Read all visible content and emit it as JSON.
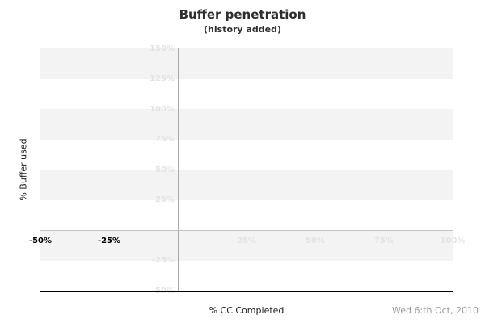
{
  "chart_data": {
    "type": "line",
    "title": "Buffer penetration",
    "subtitle": "(history added)",
    "xlabel": "% CC Completed",
    "ylabel": "% Buffer used",
    "footer_date": "Wed 6:th Oct, 2010",
    "xlim": [
      -50,
      100
    ],
    "ylim": [
      -50,
      150
    ],
    "x_ticks": [
      {
        "value": -50,
        "label": "-50%",
        "emphasis": true
      },
      {
        "value": -25,
        "label": "-25%",
        "emphasis": true
      },
      {
        "value": 25,
        "label": "25%",
        "emphasis": false
      },
      {
        "value": 50,
        "label": "50%",
        "emphasis": false
      },
      {
        "value": 75,
        "label": "75%",
        "emphasis": false
      },
      {
        "value": 100,
        "label": "100%",
        "emphasis": false
      }
    ],
    "y_ticks": [
      {
        "value": 150,
        "label": "150%"
      },
      {
        "value": 125,
        "label": "125%"
      },
      {
        "value": 100,
        "label": "100%"
      },
      {
        "value": 75,
        "label": "75%"
      },
      {
        "value": 50,
        "label": "50%"
      },
      {
        "value": 25,
        "label": "25%"
      },
      {
        "value": -25,
        "label": "-25%"
      },
      {
        "value": -50,
        "label": "-50%"
      }
    ],
    "shaded_bands": [
      [
        150,
        125
      ],
      [
        100,
        75
      ],
      [
        50,
        25
      ],
      [
        0,
        -25
      ]
    ],
    "zero_lines": {
      "x": 0,
      "y": 0
    },
    "grid": "striped",
    "legend": null,
    "series": [],
    "colors": {
      "band": "#f3f3f3",
      "tick_label_muted": "#e3e3e3",
      "tick_label_emphasis": "#000000",
      "zero_line_vertical": "#a8a8a8",
      "zero_line_horizontal": "#c2c2c2",
      "plot_border": "#000000",
      "title": "#2e2e2e",
      "axis_title": "#222222",
      "date": "#999999"
    }
  }
}
